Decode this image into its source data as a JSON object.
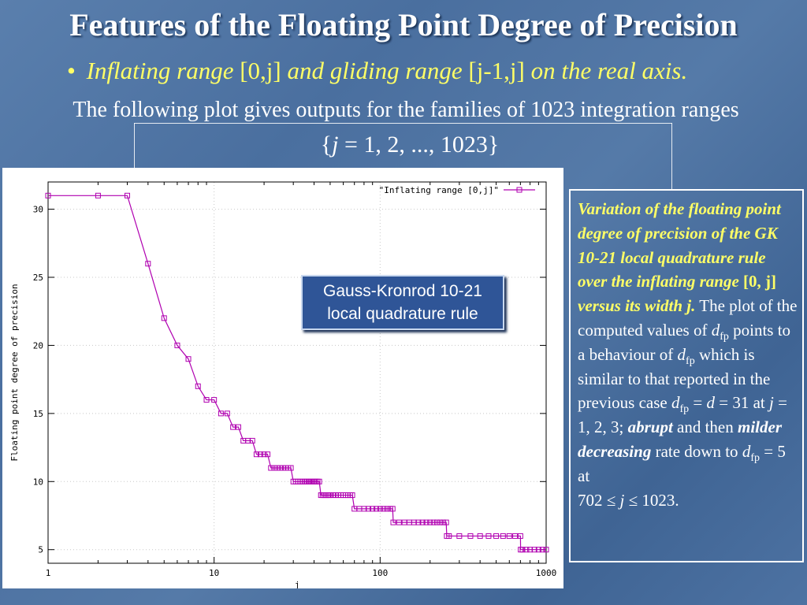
{
  "slide": {
    "title": "Features of the Floating Point Degree of Precision",
    "bullet_dot": "•",
    "bullet_1": "Inflating range",
    "bullet_2": "[0,j]",
    "bullet_3": "and gliding range",
    "bullet_4": "[j-1,j]",
    "bullet_5": "on the real axis.",
    "subtitle_line1": "The following plot gives outputs for the families of 1023 integration ranges",
    "subtitle_line2_open": "{",
    "subtitle_line2_j": "j",
    "subtitle_line2_rest": " = 1, 2, ..., 1023",
    "subtitle_line2_close": "}"
  },
  "callout": {
    "line1": "Gauss-Kronrod 10-21",
    "line2": "local quadrature rule"
  },
  "side_text": {
    "p1": "Variation of the floating point degree of precision of the GK 10-21 local quadrature rule over the inflating range",
    "p2": "[0, j]",
    "p3": "versus its width j.",
    "p4": " The plot of the computed values of ",
    "d": "d",
    "fp": "fp",
    "p5": " points to a behaviour of ",
    "p6": " which is similar to that reported in the previous case ",
    "p7": " = ",
    "p8": " = 31  at  ",
    "p9": "j",
    "p10": " = 1, 2, 3; ",
    "p11": "abrupt",
    "p12": " and then ",
    "p13": "milder decreasing",
    "p14": " rate down to ",
    "p15": "  = 5 at",
    "p16": " 702 ≤ ",
    "p17": " ≤ 1023."
  },
  "chart_data": {
    "type": "line",
    "xlabel": "j",
    "ylabel": "Floating point degree of precision",
    "xscale": "log",
    "xlim": [
      1,
      1000
    ],
    "ylim": [
      4,
      32
    ],
    "x_ticks": [
      "1",
      "10",
      "100",
      "1000"
    ],
    "y_ticks": [
      "5",
      "10",
      "15",
      "20",
      "25",
      "30"
    ],
    "grid": true,
    "legend_position": "top-right",
    "series": [
      {
        "name": "\"Inflating range [0,j]\"",
        "color": "#b000b0",
        "marker": "square",
        "x": [
          1,
          2,
          3,
          4,
          5,
          6,
          7,
          8,
          9,
          10,
          11,
          12,
          13,
          14,
          15,
          16,
          17,
          18,
          19,
          20,
          21,
          22,
          23,
          24,
          25,
          26,
          27,
          28,
          29,
          30,
          31,
          32,
          33,
          34,
          35,
          36,
          37,
          38,
          39,
          40,
          41,
          42,
          43,
          44,
          45,
          46,
          47,
          48,
          49,
          50,
          52,
          54,
          56,
          58,
          60,
          62,
          64,
          66,
          68,
          70,
          75,
          80,
          85,
          90,
          95,
          100,
          105,
          110,
          115,
          119,
          120,
          130,
          140,
          150,
          160,
          170,
          180,
          190,
          200,
          210,
          220,
          230,
          240,
          250,
          252,
          260,
          300,
          350,
          400,
          450,
          500,
          550,
          600,
          650,
          700,
          702,
          720,
          760,
          800,
          850,
          900,
          950,
          1000
        ],
        "y": [
          31,
          31,
          31,
          26,
          22,
          20,
          19,
          17,
          16,
          16,
          15,
          15,
          14,
          14,
          13,
          13,
          13,
          12,
          12,
          12,
          12,
          11,
          11,
          11,
          11,
          11,
          11,
          11,
          11,
          10,
          10,
          10,
          10,
          10,
          10,
          10,
          10,
          10,
          10,
          10,
          10,
          10,
          10,
          9,
          9,
          9,
          9,
          9,
          9,
          9,
          9,
          9,
          9,
          9,
          9,
          9,
          9,
          9,
          9,
          8,
          8,
          8,
          8,
          8,
          8,
          8,
          8,
          8,
          8,
          8,
          7,
          7,
          7,
          7,
          7,
          7,
          7,
          7,
          7,
          7,
          7,
          7,
          7,
          7,
          6,
          6,
          6,
          6,
          6,
          6,
          6,
          6,
          6,
          6,
          6,
          5,
          5,
          5,
          5,
          5,
          5,
          5,
          5
        ]
      }
    ]
  }
}
